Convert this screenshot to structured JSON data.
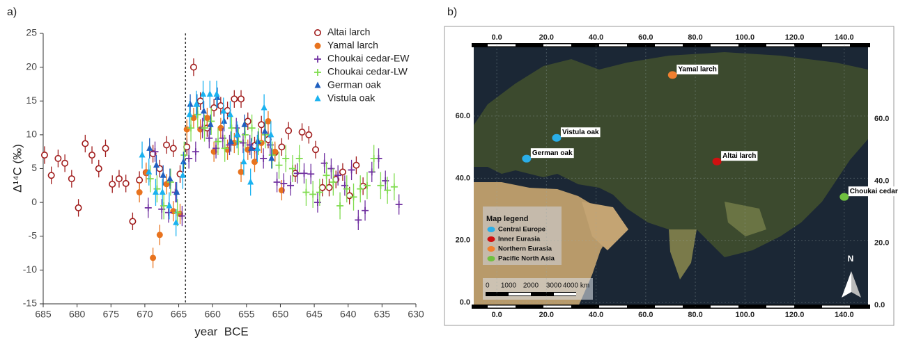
{
  "chart_data": [
    {
      "type": "errorbar",
      "panel_label": "a)",
      "xlabel": "year  BCE",
      "ylabel": "Δ¹⁴C (‰)",
      "xlim": [
        685,
        630
      ],
      "ylim": [
        -15,
        25
      ],
      "xticks": [
        685,
        680,
        675,
        670,
        665,
        660,
        655,
        650,
        645,
        640,
        635,
        630
      ],
      "yticks": [
        -15,
        -10,
        -5,
        0,
        5,
        10,
        15,
        20,
        25
      ],
      "vline": 664,
      "legend": "upper right",
      "series": [
        {
          "name": "Altai larch",
          "color": "#a01c1c",
          "marker": "open-circle",
          "error": 1.3,
          "x": [
            684.8,
            683.8,
            682.8,
            681.8,
            680.8,
            679.8,
            678.8,
            677.8,
            676.8,
            675.8,
            674.8,
            673.8,
            672.8,
            671.8,
            670.8,
            669.8,
            668.8,
            667.8,
            666.8,
            665.8,
            664.8,
            663.8,
            662.8,
            661.8,
            660.8,
            659.8,
            658.8,
            657.8,
            656.8,
            655.8,
            654.8,
            653.8,
            652.8,
            651.8,
            650.8,
            649.8,
            648.8,
            647.8,
            646.8,
            645.8,
            644.8,
            643.8,
            642.8,
            641.8,
            640.8,
            639.8,
            638.8,
            637.8
          ],
          "values": [
            7,
            4,
            6.5,
            5.8,
            3.5,
            -0.8,
            8.7,
            7,
            5,
            8,
            2.7,
            3.5,
            2.8,
            -2.8,
            3.3,
            4.4,
            7.2,
            5,
            8.5,
            8,
            4.2,
            8.2,
            20,
            15,
            11,
            14,
            14.3,
            13.6,
            15.3,
            15.3,
            12,
            8.4,
            11.5,
            9.3,
            7.4,
            8.2,
            10.6,
            4.3,
            10.4,
            10,
            7.8,
            2.2,
            2.2,
            3.4,
            4.5,
            1,
            5.5,
            2.4
          ]
        },
        {
          "name": "Yamal larch",
          "color": "#e8731e",
          "marker": "circle",
          "error": 1.5,
          "x": [
            670.8,
            669.8,
            668.8,
            667.8,
            666.8,
            665.8,
            664.8,
            663.8,
            662.8,
            661.8,
            660.8,
            659.8,
            658.8,
            657.8,
            656.8,
            655.8,
            654.8,
            653.8,
            652.8,
            651.8,
            650.8,
            649.8
          ],
          "values": [
            1.5,
            4.4,
            -8.2,
            -4.8,
            2.7,
            -1.3,
            -1.7,
            10.8,
            12.5,
            10.8,
            12.5,
            7.5,
            11,
            7.8,
            8.8,
            4.5,
            7.8,
            6,
            8.8,
            12,
            7.5,
            1.8
          ]
        },
        {
          "name": "Choukai cedar-EW",
          "color": "#7030a0",
          "marker": "plus",
          "error": 1.5,
          "x": [
            669.5,
            668.5,
            667.5,
            666.5,
            665.5,
            664.5,
            663.5,
            662.5,
            661.5,
            660.5,
            659.5,
            658.5,
            657.5,
            656.5,
            655.5,
            654.5,
            653.5,
            652.5,
            651.5,
            650.5,
            649.5,
            648.5,
            647.5,
            646.5,
            645.5,
            644.5,
            643.5,
            642.5,
            641.5,
            640.5,
            639.5,
            638.5,
            637.5,
            636.5,
            635.5,
            634.5,
            632.5
          ],
          "values": [
            -0.8,
            7.5,
            -1,
            -1.5,
            1.5,
            -2,
            6.5,
            7.5,
            11,
            9.5,
            8,
            9.5,
            8.5,
            11,
            8.8,
            8.5,
            7.8,
            6.5,
            8.5,
            3,
            2.8,
            2.5,
            4.3,
            4.3,
            4.2,
            0,
            5.8,
            5,
            4,
            2.5,
            4.8,
            -2.6,
            -1.2,
            4.5,
            6.5,
            3.2,
            -0.3
          ]
        },
        {
          "name": "Choukai cedar-LW",
          "color": "#7fdc4e",
          "marker": "plus",
          "error": 2,
          "x": [
            669.2,
            668.2,
            667.2,
            666.2,
            665.2,
            664.2,
            663.2,
            662.2,
            661.2,
            660.2,
            659.2,
            658.2,
            657.2,
            656.2,
            655.2,
            654.2,
            653.2,
            652.2,
            651.2,
            650.2,
            649.2,
            648.2,
            647.2,
            646.2,
            645.2,
            644.2,
            643.2,
            642.2,
            641.2,
            640.2,
            639.2,
            638.2,
            637.2,
            636.2,
            635.2,
            634.2,
            633.2
          ],
          "values": [
            3.5,
            2,
            -0.5,
            3,
            -1.5,
            7,
            11,
            13,
            11,
            12,
            9,
            8,
            11,
            9,
            10,
            11,
            9,
            10,
            7,
            5.5,
            6.5,
            5,
            6.5,
            1.5,
            1.2,
            1.5,
            4,
            3,
            -0.5,
            2,
            0.8,
            2,
            2.5,
            6.5,
            2.5,
            1.8,
            2.3
          ]
        },
        {
          "name": "German oak",
          "color": "#1f5fbf",
          "marker": "triangle",
          "error": 1.5,
          "x": [
            669.3,
            668.3,
            667.3,
            666.3,
            665.3,
            664.3,
            663.3,
            662.3,
            661.3,
            660.3,
            659.3,
            658.3,
            657.3,
            656.3,
            655.3,
            654.3,
            653.3,
            652.3,
            651.3
          ],
          "values": [
            8,
            5.5,
            4,
            3.5,
            1.5,
            6,
            14.5,
            14.5,
            13.5,
            11.5,
            15.5,
            12,
            9,
            10,
            11.5,
            8,
            9,
            10.5,
            6.5
          ]
        },
        {
          "name": "Vistula oak",
          "color": "#1ab2f0",
          "marker": "triangle",
          "error": 2,
          "x": [
            670.4,
            669.4,
            668.4,
            667.4,
            666.4,
            665.4,
            664.4,
            663.4,
            662.4,
            661.4,
            660.4,
            659.4,
            658.4,
            657.4,
            656.4,
            655.4,
            654.4,
            653.4,
            652.4,
            651.4
          ],
          "values": [
            7,
            4.5,
            1.5,
            1.5,
            -0.5,
            -3,
            4,
            13,
            14.5,
            16,
            16,
            16,
            13.5,
            13,
            10,
            6,
            3,
            8,
            14,
            10
          ]
        }
      ]
    },
    {
      "type": "map",
      "panel_label": "b)",
      "xlim": [
        -9.3,
        149.6
      ],
      "ylim": [
        -1.3,
        82.8
      ],
      "xticks": [
        {
          "value": 0,
          "label": "0.0"
        },
        {
          "value": 20,
          "label": "20.0"
        },
        {
          "value": 40,
          "label": "40.0"
        },
        {
          "value": 60,
          "label": "60.0"
        },
        {
          "value": 80,
          "label": "80.0"
        },
        {
          "value": 100,
          "label": "100.0"
        },
        {
          "value": 120,
          "label": "120.0"
        },
        {
          "value": 140,
          "label": "140.0"
        }
      ],
      "yticks": [
        {
          "value": 0,
          "label": "0.0"
        },
        {
          "value": 20,
          "label": "20.0"
        },
        {
          "value": 40,
          "label": "40.0"
        },
        {
          "value": 60,
          "label": "60.0"
        }
      ],
      "sites": [
        {
          "name": "Yamal larch",
          "lon": 70.8,
          "lat": 73.2,
          "color": "#f08030"
        },
        {
          "name": "Vistula oak",
          "lon": 24.1,
          "lat": 53,
          "color": "#2aaee8"
        },
        {
          "name": "German oak",
          "lon": 12,
          "lat": 46.3,
          "color": "#2aaee8"
        },
        {
          "name": "Altai larch",
          "lon": 88.7,
          "lat": 45.4,
          "color": "#d01010"
        },
        {
          "name": "Choukai cedar",
          "lon": 140,
          "lat": 34,
          "color": "#70c040"
        }
      ],
      "legend_title": "Map legend",
      "legend": [
        {
          "name": "Central Europe",
          "color": "#2aaee8"
        },
        {
          "name": "Inner Eurasia",
          "color": "#d01010"
        },
        {
          "name": "Northern Eurasia",
          "color": "#f08030"
        },
        {
          "name": "Pacific North Asia",
          "color": "#70c040"
        }
      ],
      "scale_labels": [
        "0",
        "1000",
        "2000",
        "3000",
        "4000 km"
      ],
      "north": "N"
    }
  ]
}
